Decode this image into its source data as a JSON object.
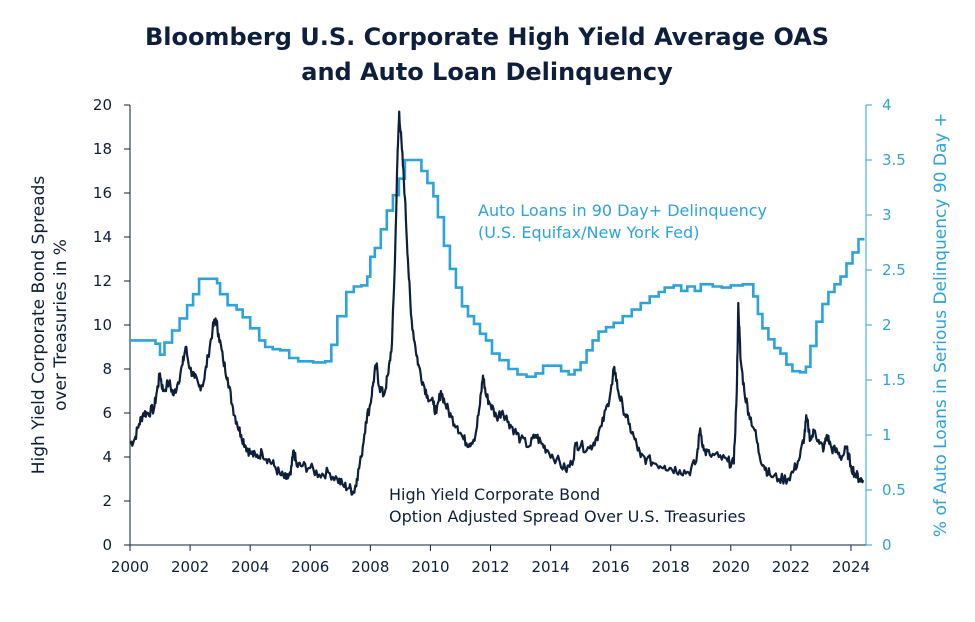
{
  "colors": {
    "hy": "#0d1f3c",
    "auto": "#2ba3dc",
    "title": "#0d1f3c",
    "axis": "#0d1f3c"
  },
  "chart_data": {
    "type": "line",
    "title": "Bloomberg U.S. Corporate High Yield Average OAS",
    "title_line2": "and Auto Loan Delinquency",
    "ylabel_left_line1": "High Yield Corporate Bond Spreads",
    "ylabel_left_line2": "over Treasuries in %",
    "ylabel_right": "% of Auto Loans in Serious Delinquency 90 Day +",
    "x_ticks": [
      "2000",
      "2002",
      "2004",
      "2006",
      "2008",
      "2010",
      "2012",
      "2014",
      "2016",
      "2018",
      "2020",
      "2022",
      "2024"
    ],
    "y_left_ticks": [
      "0",
      "2",
      "4",
      "6",
      "8",
      "10",
      "12",
      "14",
      "16",
      "18",
      "20"
    ],
    "y_right_ticks": [
      "0",
      "0.5",
      "1",
      "1.5",
      "2",
      "2.5",
      "3",
      "3.5",
      "4"
    ],
    "xlim": [
      2000,
      2024.5
    ],
    "ylim_left": [
      0,
      20
    ],
    "ylim_right": [
      0,
      4
    ],
    "grid": false,
    "annotations": {
      "auto_line1": "Auto Loans in 90 Day+ Delinquency",
      "auto_line2": "(U.S. Equifax/New York Fed)",
      "hy_line1": "High Yield Corporate Bond",
      "hy_line2": "Option Adjusted Spread Over U.S. Treasuries"
    },
    "series": [
      {
        "key": "hy",
        "axis": "left",
        "points": [
          [
            2000.0,
            4.6
          ],
          [
            2000.15,
            4.8
          ],
          [
            2000.3,
            5.5
          ],
          [
            2000.45,
            6.0
          ],
          [
            2000.6,
            6.0
          ],
          [
            2000.8,
            6.2
          ],
          [
            2000.9,
            7.0
          ],
          [
            2001.0,
            7.8
          ],
          [
            2001.1,
            7.0
          ],
          [
            2001.3,
            7.4
          ],
          [
            2001.45,
            6.8
          ],
          [
            2001.6,
            7.4
          ],
          [
            2001.75,
            8.2
          ],
          [
            2001.85,
            9.0
          ],
          [
            2002.0,
            8.0
          ],
          [
            2002.15,
            7.6
          ],
          [
            2002.3,
            7.2
          ],
          [
            2002.45,
            7.4
          ],
          [
            2002.6,
            8.6
          ],
          [
            2002.75,
            9.8
          ],
          [
            2002.85,
            10.3
          ],
          [
            2002.95,
            9.6
          ],
          [
            2003.1,
            8.4
          ],
          [
            2003.25,
            7.6
          ],
          [
            2003.4,
            6.4
          ],
          [
            2003.55,
            5.6
          ],
          [
            2003.7,
            5.0
          ],
          [
            2003.85,
            4.5
          ],
          [
            2004.0,
            4.2
          ],
          [
            2004.2,
            4.0
          ],
          [
            2004.4,
            4.2
          ],
          [
            2004.6,
            3.9
          ],
          [
            2004.8,
            3.6
          ],
          [
            2005.0,
            3.2
          ],
          [
            2005.2,
            3.0
          ],
          [
            2005.35,
            3.2
          ],
          [
            2005.45,
            4.3
          ],
          [
            2005.55,
            3.6
          ],
          [
            2005.75,
            3.6
          ],
          [
            2006.0,
            3.5
          ],
          [
            2006.3,
            3.2
          ],
          [
            2006.6,
            3.3
          ],
          [
            2006.9,
            3.0
          ],
          [
            2007.1,
            2.7
          ],
          [
            2007.3,
            2.6
          ],
          [
            2007.45,
            2.4
          ],
          [
            2007.55,
            3.0
          ],
          [
            2007.7,
            4.0
          ],
          [
            2007.85,
            5.6
          ],
          [
            2008.0,
            6.4
          ],
          [
            2008.1,
            7.4
          ],
          [
            2008.2,
            8.2
          ],
          [
            2008.3,
            7.2
          ],
          [
            2008.45,
            6.8
          ],
          [
            2008.6,
            7.8
          ],
          [
            2008.72,
            9.2
          ],
          [
            2008.82,
            13.0
          ],
          [
            2008.9,
            17.5
          ],
          [
            2008.96,
            19.7
          ],
          [
            2009.05,
            18.0
          ],
          [
            2009.15,
            15.8
          ],
          [
            2009.25,
            13.0
          ],
          [
            2009.35,
            10.5
          ],
          [
            2009.5,
            9.0
          ],
          [
            2009.6,
            8.2
          ],
          [
            2009.75,
            7.4
          ],
          [
            2009.9,
            6.8
          ],
          [
            2010.1,
            6.4
          ],
          [
            2010.2,
            6.0
          ],
          [
            2010.35,
            7.0
          ],
          [
            2010.5,
            6.4
          ],
          [
            2010.7,
            5.8
          ],
          [
            2010.9,
            5.4
          ],
          [
            2011.1,
            4.8
          ],
          [
            2011.3,
            4.6
          ],
          [
            2011.5,
            5.0
          ],
          [
            2011.65,
            6.4
          ],
          [
            2011.75,
            7.7
          ],
          [
            2011.85,
            6.8
          ],
          [
            2012.0,
            6.4
          ],
          [
            2012.2,
            5.8
          ],
          [
            2012.4,
            6.1
          ],
          [
            2012.6,
            5.6
          ],
          [
            2012.8,
            5.2
          ],
          [
            2013.0,
            4.8
          ],
          [
            2013.3,
            4.5
          ],
          [
            2013.5,
            5.0
          ],
          [
            2013.7,
            4.6
          ],
          [
            2013.9,
            4.3
          ],
          [
            2014.2,
            3.9
          ],
          [
            2014.5,
            3.4
          ],
          [
            2014.7,
            3.7
          ],
          [
            2014.85,
            4.6
          ],
          [
            2015.0,
            4.5
          ],
          [
            2015.3,
            4.4
          ],
          [
            2015.5,
            4.8
          ],
          [
            2015.7,
            5.4
          ],
          [
            2015.9,
            6.4
          ],
          [
            2016.05,
            7.3
          ],
          [
            2016.12,
            8.1
          ],
          [
            2016.25,
            7.0
          ],
          [
            2016.4,
            6.3
          ],
          [
            2016.6,
            5.5
          ],
          [
            2016.8,
            4.8
          ],
          [
            2017.0,
            4.0
          ],
          [
            2017.2,
            3.9
          ],
          [
            2017.5,
            3.7
          ],
          [
            2017.8,
            3.6
          ],
          [
            2018.0,
            3.5
          ],
          [
            2018.3,
            3.4
          ],
          [
            2018.6,
            3.3
          ],
          [
            2018.85,
            3.8
          ],
          [
            2018.98,
            5.3
          ],
          [
            2019.1,
            4.3
          ],
          [
            2019.3,
            4.1
          ],
          [
            2019.6,
            4.0
          ],
          [
            2019.9,
            3.8
          ],
          [
            2020.1,
            3.7
          ],
          [
            2020.2,
            7.0
          ],
          [
            2020.25,
            11.0
          ],
          [
            2020.32,
            8.5
          ],
          [
            2020.45,
            7.0
          ],
          [
            2020.6,
            6.0
          ],
          [
            2020.8,
            5.2
          ],
          [
            2020.95,
            4.1
          ],
          [
            2021.1,
            3.6
          ],
          [
            2021.3,
            3.2
          ],
          [
            2021.6,
            3.0
          ],
          [
            2021.9,
            3.0
          ],
          [
            2022.1,
            3.4
          ],
          [
            2022.3,
            4.0
          ],
          [
            2022.45,
            5.0
          ],
          [
            2022.52,
            5.8
          ],
          [
            2022.65,
            4.8
          ],
          [
            2022.8,
            5.2
          ],
          [
            2022.95,
            4.6
          ],
          [
            2023.1,
            4.4
          ],
          [
            2023.2,
            5.0
          ],
          [
            2023.35,
            4.4
          ],
          [
            2023.55,
            4.2
          ],
          [
            2023.7,
            4.0
          ],
          [
            2023.85,
            4.4
          ],
          [
            2024.0,
            3.6
          ],
          [
            2024.15,
            3.2
          ],
          [
            2024.3,
            3.0
          ],
          [
            2024.4,
            2.95
          ]
        ]
      },
      {
        "key": "auto",
        "axis": "right",
        "points": [
          [
            2000.0,
            1.86
          ],
          [
            2000.85,
            1.83
          ],
          [
            2001.0,
            1.73
          ],
          [
            2001.15,
            1.84
          ],
          [
            2001.4,
            1.95
          ],
          [
            2001.65,
            2.06
          ],
          [
            2001.9,
            2.18
          ],
          [
            2002.1,
            2.28
          ],
          [
            2002.3,
            2.42
          ],
          [
            2002.9,
            2.38
          ],
          [
            2003.0,
            2.28
          ],
          [
            2003.25,
            2.18
          ],
          [
            2003.55,
            2.14
          ],
          [
            2003.75,
            2.07
          ],
          [
            2004.0,
            1.97
          ],
          [
            2004.3,
            1.86
          ],
          [
            2004.5,
            1.8
          ],
          [
            2004.75,
            1.78
          ],
          [
            2005.0,
            1.77
          ],
          [
            2005.3,
            1.7
          ],
          [
            2005.6,
            1.67
          ],
          [
            2006.1,
            1.66
          ],
          [
            2006.5,
            1.67
          ],
          [
            2006.7,
            1.82
          ],
          [
            2006.9,
            2.08
          ],
          [
            2007.2,
            2.3
          ],
          [
            2007.45,
            2.35
          ],
          [
            2007.7,
            2.36
          ],
          [
            2007.9,
            2.44
          ],
          [
            2008.0,
            2.62
          ],
          [
            2008.15,
            2.7
          ],
          [
            2008.35,
            2.87
          ],
          [
            2008.55,
            3.04
          ],
          [
            2008.75,
            3.18
          ],
          [
            2008.95,
            3.33
          ],
          [
            2009.15,
            3.5
          ],
          [
            2009.5,
            3.5
          ],
          [
            2009.7,
            3.4
          ],
          [
            2009.9,
            3.29
          ],
          [
            2010.1,
            3.17
          ],
          [
            2010.25,
            2.98
          ],
          [
            2010.45,
            2.72
          ],
          [
            2010.65,
            2.51
          ],
          [
            2010.85,
            2.34
          ],
          [
            2011.05,
            2.17
          ],
          [
            2011.25,
            2.08
          ],
          [
            2011.45,
            2.01
          ],
          [
            2011.65,
            1.92
          ],
          [
            2011.85,
            1.86
          ],
          [
            2012.05,
            1.74
          ],
          [
            2012.3,
            1.68
          ],
          [
            2012.6,
            1.6
          ],
          [
            2012.9,
            1.55
          ],
          [
            2013.2,
            1.53
          ],
          [
            2013.5,
            1.56
          ],
          [
            2013.75,
            1.63
          ],
          [
            2014.1,
            1.63
          ],
          [
            2014.35,
            1.58
          ],
          [
            2014.6,
            1.55
          ],
          [
            2014.8,
            1.59
          ],
          [
            2015.0,
            1.66
          ],
          [
            2015.2,
            1.77
          ],
          [
            2015.4,
            1.86
          ],
          [
            2015.6,
            1.94
          ],
          [
            2015.85,
            1.98
          ],
          [
            2016.1,
            2.02
          ],
          [
            2016.4,
            2.08
          ],
          [
            2016.7,
            2.14
          ],
          [
            2017.0,
            2.2
          ],
          [
            2017.3,
            2.26
          ],
          [
            2017.6,
            2.3
          ],
          [
            2017.8,
            2.34
          ],
          [
            2018.1,
            2.36
          ],
          [
            2018.35,
            2.31
          ],
          [
            2018.55,
            2.35
          ],
          [
            2018.8,
            2.31
          ],
          [
            2019.0,
            2.37
          ],
          [
            2019.4,
            2.35
          ],
          [
            2019.7,
            2.34
          ],
          [
            2020.0,
            2.36
          ],
          [
            2020.4,
            2.37
          ],
          [
            2020.75,
            2.26
          ],
          [
            2020.9,
            2.1
          ],
          [
            2021.05,
            1.97
          ],
          [
            2021.25,
            1.87
          ],
          [
            2021.45,
            1.79
          ],
          [
            2021.65,
            1.74
          ],
          [
            2021.85,
            1.64
          ],
          [
            2022.05,
            1.58
          ],
          [
            2022.3,
            1.57
          ],
          [
            2022.5,
            1.62
          ],
          [
            2022.65,
            1.81
          ],
          [
            2022.85,
            2.03
          ],
          [
            2023.05,
            2.19
          ],
          [
            2023.25,
            2.3
          ],
          [
            2023.45,
            2.37
          ],
          [
            2023.65,
            2.44
          ],
          [
            2023.85,
            2.56
          ],
          [
            2024.05,
            2.66
          ],
          [
            2024.25,
            2.78
          ],
          [
            2024.45,
            2.78
          ]
        ]
      }
    ]
  }
}
